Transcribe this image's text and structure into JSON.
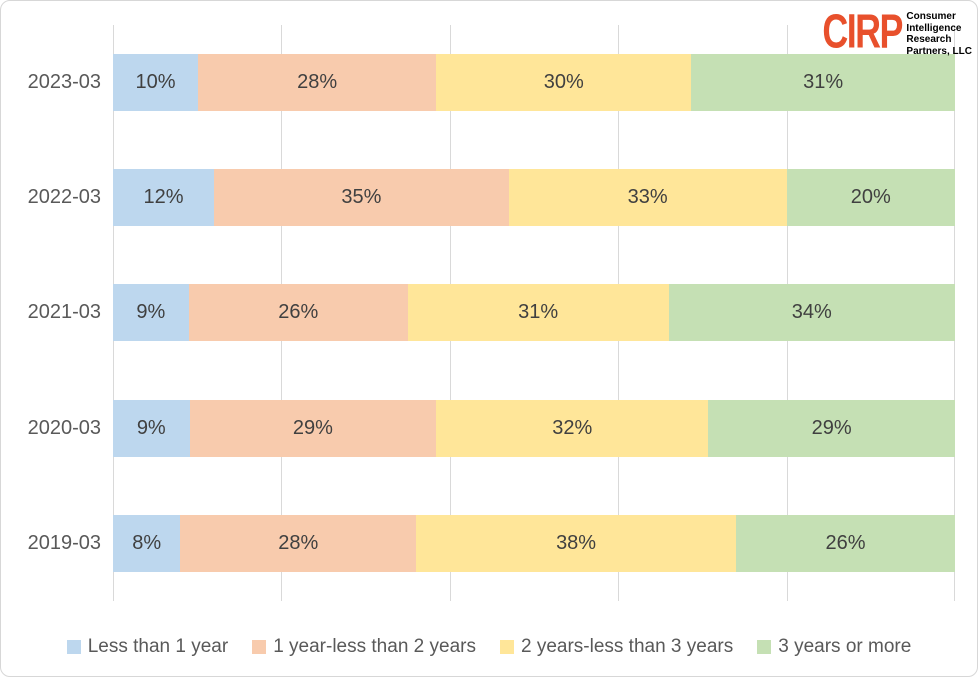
{
  "logo": {
    "acronym": "CIRP",
    "acronym_color": "#e8502c",
    "lines": [
      "Consumer",
      "Intelligence",
      "Research",
      "Partners, LLC"
    ]
  },
  "chart_data": {
    "type": "bar",
    "variant": "stacked-horizontal-100",
    "title": "",
    "xlabel": "",
    "ylabel": "",
    "xlim": [
      0,
      100
    ],
    "grid": "vertical",
    "gridline_positions_pct": [
      0,
      20,
      40,
      60,
      80,
      100
    ],
    "gridline_color": "#d9d9d9",
    "legend_position": "bottom",
    "value_suffix": "%",
    "categories": [
      "2023-03",
      "2022-03",
      "2021-03",
      "2020-03",
      "2019-03"
    ],
    "series": [
      {
        "name": "Less than 1 year",
        "color": "#bdd7ee",
        "values": [
          10,
          12,
          9,
          9,
          8
        ]
      },
      {
        "name": "1 year-less than 2 years",
        "color": "#f8cbad",
        "values": [
          28,
          35,
          26,
          29,
          28
        ]
      },
      {
        "name": "2 years-less than 3 years",
        "color": "#ffe699",
        "values": [
          30,
          33,
          31,
          32,
          38
        ]
      },
      {
        "name": "3 years or more",
        "color": "#c5e0b4",
        "values": [
          31,
          20,
          34,
          29,
          26
        ]
      }
    ],
    "value_labels": [
      [
        "10%",
        "28%",
        "30%",
        "31%"
      ],
      [
        "12%",
        "35%",
        "33%",
        "20%"
      ],
      [
        "9%",
        "26%",
        "31%",
        "34%"
      ],
      [
        "9%",
        "29%",
        "32%",
        "29%"
      ],
      [
        "8%",
        "28%",
        "38%",
        "26%"
      ]
    ],
    "category_label_color": "#595959",
    "value_label_color": "#404040"
  }
}
